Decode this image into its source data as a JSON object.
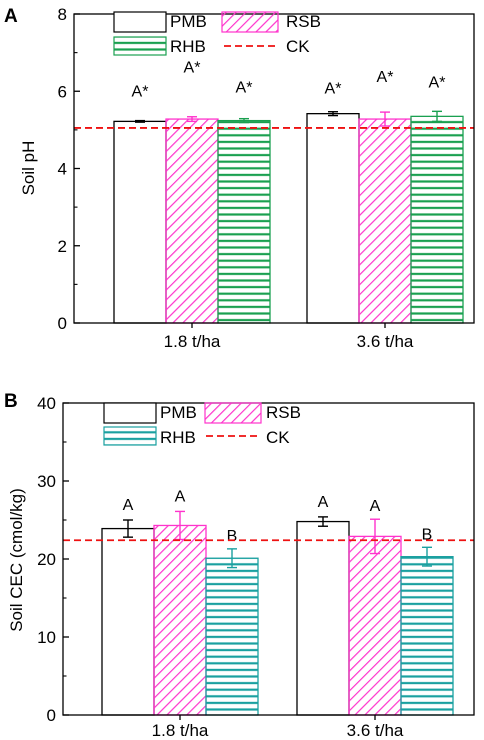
{
  "chart_data": [
    {
      "panel_label": "A",
      "type": "bar",
      "ylabel": "Soil pH",
      "ylim": [
        0,
        8
      ],
      "yticks": [
        "0",
        "2",
        "4",
        "6",
        "8"
      ],
      "categories": [
        "1.8 t/ha",
        "3.6 t/ha"
      ],
      "series": [
        {
          "name": "PMB",
          "values": [
            5.22,
            5.42
          ],
          "errors": [
            0.02,
            0.05
          ],
          "color": "#000000",
          "pattern": "none"
        },
        {
          "name": "RSB",
          "values": [
            5.28,
            5.28
          ],
          "errors": [
            0.06,
            0.18
          ],
          "color": "#ff33cc",
          "pattern": "diagonal"
        },
        {
          "name": "RHB",
          "values": [
            5.24,
            5.35
          ],
          "errors": [
            0.05,
            0.13
          ],
          "color": "#1aa050",
          "pattern": "horizontal"
        }
      ],
      "letters": [
        [
          "A*",
          "A*",
          "A*"
        ],
        [
          "A*",
          "A*",
          "A*"
        ]
      ],
      "reference_line": {
        "name": "CK",
        "value": 5.05,
        "color": "#ee1111"
      },
      "legend": "top"
    },
    {
      "panel_label": "B",
      "type": "bar",
      "ylabel": "Soil CEC (cmol/kg)",
      "ylim": [
        0,
        40
      ],
      "yticks": [
        "0",
        "10",
        "20",
        "30",
        "40"
      ],
      "categories": [
        "1.8 t/ha",
        "3.6 t/ha"
      ],
      "series": [
        {
          "name": "PMB",
          "values": [
            23.9,
            24.8
          ],
          "errors": [
            1.1,
            0.6
          ],
          "color": "#000000",
          "pattern": "none"
        },
        {
          "name": "RSB",
          "values": [
            24.3,
            22.9
          ],
          "errors": [
            1.8,
            2.2
          ],
          "color": "#ff33cc",
          "pattern": "diagonal"
        },
        {
          "name": "RHB",
          "values": [
            20.1,
            20.3
          ],
          "errors": [
            1.2,
            1.2
          ],
          "color": "#1aa0a0",
          "pattern": "horizontal"
        }
      ],
      "letters": [
        [
          "A",
          "A",
          "B"
        ],
        [
          "A",
          "A",
          "B"
        ]
      ],
      "reference_line": {
        "name": "CK",
        "value": 22.4,
        "color": "#ee1111"
      },
      "legend": "top"
    }
  ]
}
